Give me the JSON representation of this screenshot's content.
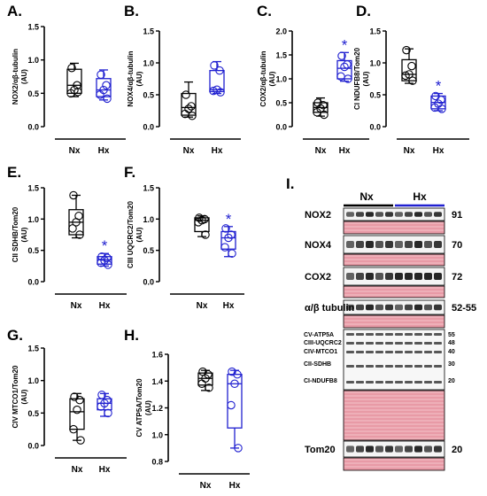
{
  "colors": {
    "nx": "#000000",
    "hx": "#2020d0",
    "star": "#2020d0",
    "stain": "#e89aa6",
    "stain_light": "#f3c4cb"
  },
  "chart_data": [
    {
      "type": "box",
      "panel": "A.",
      "ylabel": "NOX2/αβ-tubulin",
      "ylabel2": "(AU)",
      "yticks": [
        "0.0",
        "0.5",
        "1.0",
        "1.5"
      ],
      "ylim": [
        0,
        1.5
      ],
      "categories": [
        "Nx",
        "Hx"
      ],
      "significant": false,
      "series": [
        {
          "group": "Nx",
          "min": 0.45,
          "q1": 0.5,
          "median": 0.62,
          "q3": 0.86,
          "max": 0.95,
          "points": [
            0.88,
            0.62,
            0.55,
            0.5,
            0.52
          ]
        },
        {
          "group": "Hx",
          "min": 0.4,
          "q1": 0.45,
          "median": 0.55,
          "q3": 0.72,
          "max": 0.85,
          "points": [
            0.78,
            0.62,
            0.55,
            0.48,
            0.42
          ]
        }
      ]
    },
    {
      "type": "box",
      "panel": "B.",
      "ylabel": "NOX4/αβ-tubulin",
      "ylabel2": "(AU)",
      "yticks": [
        "0.0",
        "0.5",
        "1.0",
        "1.5"
      ],
      "ylim": [
        0,
        1.5
      ],
      "categories": [
        "Nx",
        "Hx"
      ],
      "significant": false,
      "series": [
        {
          "group": "Nx",
          "min": 0.15,
          "q1": 0.18,
          "median": 0.3,
          "q3": 0.52,
          "max": 0.7,
          "points": [
            0.5,
            0.32,
            0.28,
            0.2,
            0.17
          ]
        },
        {
          "group": "Hx",
          "min": 0.52,
          "q1": 0.55,
          "median": 0.58,
          "q3": 0.88,
          "max": 1.02,
          "points": [
            0.96,
            0.88,
            0.58,
            0.56,
            0.54
          ]
        }
      ]
    },
    {
      "type": "box",
      "panel": "C.",
      "ylabel": "COX2/αβ-tubulin",
      "ylabel2": "(AU)",
      "yticks": [
        "0.0",
        "0.5",
        "1.0",
        "1.5",
        "2.0"
      ],
      "ylim": [
        0,
        2.0
      ],
      "categories": [
        "Nx",
        "Hx"
      ],
      "significant": true,
      "series": [
        {
          "group": "Nx",
          "min": 0.22,
          "q1": 0.3,
          "median": 0.4,
          "q3": 0.5,
          "max": 0.6,
          "points": [
            0.5,
            0.45,
            0.38,
            0.3,
            0.25
          ]
        },
        {
          "group": "Hx",
          "min": 0.95,
          "q1": 1.0,
          "median": 1.22,
          "q3": 1.38,
          "max": 1.55,
          "points": [
            1.48,
            1.3,
            1.25,
            1.05,
            1.0
          ]
        }
      ]
    },
    {
      "type": "box",
      "panel": "D.",
      "ylabel": "CI NDUFB8/Tom20",
      "ylabel2": "(AU)",
      "yticks": [
        "0.0",
        "0.5",
        "1.0",
        "1.5"
      ],
      "ylim": [
        0,
        1.5
      ],
      "categories": [
        "Nx",
        "Hx"
      ],
      "significant": true,
      "series": [
        {
          "group": "Nx",
          "min": 0.68,
          "q1": 0.72,
          "median": 0.82,
          "q3": 1.05,
          "max": 1.22,
          "points": [
            1.2,
            0.95,
            0.82,
            0.8,
            0.72
          ]
        },
        {
          "group": "Hx",
          "min": 0.25,
          "q1": 0.28,
          "median": 0.38,
          "q3": 0.48,
          "max": 0.52,
          "points": [
            0.48,
            0.42,
            0.36,
            0.3,
            0.28
          ]
        }
      ]
    },
    {
      "type": "box",
      "panel": "E.",
      "ylabel": "CII SDHB/Tom20",
      "ylabel2": "(AU)",
      "yticks": [
        "0.0",
        "0.5",
        "1.0",
        "1.5"
      ],
      "ylim": [
        0,
        1.5
      ],
      "categories": [
        "Nx",
        "Hx"
      ],
      "significant": true,
      "series": [
        {
          "group": "Nx",
          "min": 0.7,
          "q1": 0.75,
          "median": 0.95,
          "q3": 1.15,
          "max": 1.38,
          "points": [
            1.38,
            1.05,
            0.95,
            0.85,
            0.75
          ]
        },
        {
          "group": "Hx",
          "min": 0.25,
          "q1": 0.28,
          "median": 0.35,
          "q3": 0.4,
          "max": 0.45,
          "points": [
            0.4,
            0.38,
            0.34,
            0.3,
            0.27
          ]
        }
      ]
    },
    {
      "type": "box",
      "panel": "F.",
      "ylabel": "CIII UQCRC2/Tom20",
      "ylabel2": "(AU)",
      "yticks": [
        "0.0",
        "0.5",
        "1.0",
        "1.5"
      ],
      "ylim": [
        0,
        1.5
      ],
      "categories": [
        "Nx",
        "Hx"
      ],
      "significant": true,
      "series": [
        {
          "group": "Nx",
          "min": 0.72,
          "q1": 0.8,
          "median": 0.98,
          "q3": 1.02,
          "max": 1.05,
          "points": [
            1.02,
            1.0,
            0.98,
            0.95,
            0.75
          ]
        },
        {
          "group": "Hx",
          "min": 0.4,
          "q1": 0.52,
          "median": 0.7,
          "q3": 0.8,
          "max": 0.88,
          "points": [
            0.85,
            0.75,
            0.7,
            0.55,
            0.45
          ]
        }
      ]
    },
    {
      "type": "box",
      "panel": "G.",
      "ylabel": "CIV MTCO1/Tom20",
      "ylabel2": "(AU)",
      "yticks": [
        "0.0",
        "0.5",
        "1.0",
        "1.5"
      ],
      "ylim": [
        0,
        1.5
      ],
      "categories": [
        "Nx",
        "Hx"
      ],
      "significant": false,
      "series": [
        {
          "group": "Nx",
          "min": 0.08,
          "q1": 0.25,
          "median": 0.52,
          "q3": 0.72,
          "max": 0.8,
          "points": [
            0.75,
            0.7,
            0.55,
            0.25,
            0.08
          ]
        },
        {
          "group": "Hx",
          "min": 0.45,
          "q1": 0.55,
          "median": 0.65,
          "q3": 0.72,
          "max": 0.8,
          "points": [
            0.78,
            0.7,
            0.65,
            0.6,
            0.5
          ]
        }
      ]
    },
    {
      "type": "box",
      "panel": "H.",
      "ylabel": "CV ATP5A/Tom20",
      "ylabel2": "(AU)",
      "yticks": [
        "0.8",
        "1.0",
        "1.2",
        "1.4",
        "1.6"
      ],
      "ylim": [
        0.8,
        1.6
      ],
      "categories": [
        "Nx",
        "Hx"
      ],
      "significant": false,
      "series": [
        {
          "group": "Nx",
          "min": 1.33,
          "q1": 1.37,
          "median": 1.42,
          "q3": 1.46,
          "max": 1.48,
          "points": [
            1.47,
            1.45,
            1.42,
            1.38,
            1.35
          ]
        },
        {
          "group": "Hx",
          "min": 0.9,
          "q1": 1.05,
          "median": 1.38,
          "q3": 1.45,
          "max": 1.48,
          "points": [
            1.47,
            1.45,
            1.38,
            1.22,
            0.9
          ]
        }
      ]
    }
  ],
  "blot": {
    "panel": "I.",
    "group_left": "Nx",
    "group_right": "Hx",
    "rows": [
      {
        "label": "NOX2",
        "kda": "91",
        "kind": "band"
      },
      {
        "label": "",
        "kda": "",
        "kind": "stain"
      },
      {
        "label": "NOX4",
        "kda": "70",
        "kind": "band"
      },
      {
        "label": "",
        "kda": "",
        "kind": "stain"
      },
      {
        "label": "COX2",
        "kda": "72",
        "kind": "band"
      },
      {
        "label": "",
        "kda": "",
        "kind": "stain"
      },
      {
        "label": "α/β tubulin",
        "kda": "52-55",
        "kind": "band"
      },
      {
        "label": "",
        "kda": "",
        "kind": "stain"
      },
      {
        "label": "",
        "kda": "",
        "kind": "oxphos"
      },
      {
        "label": "",
        "kda": "",
        "kind": "stainbig"
      },
      {
        "label": "Tom20",
        "kda": "20",
        "kind": "band"
      },
      {
        "label": "",
        "kda": "",
        "kind": "stain"
      }
    ],
    "oxphos_labels": [
      "CV-ATP5A",
      "CIII-UQCRC2",
      "CIV-MTCO1",
      "CII-SDHB",
      "CI-NDUFB8"
    ],
    "oxphos_kda": [
      "55",
      "48",
      "40",
      "30",
      "20"
    ]
  }
}
